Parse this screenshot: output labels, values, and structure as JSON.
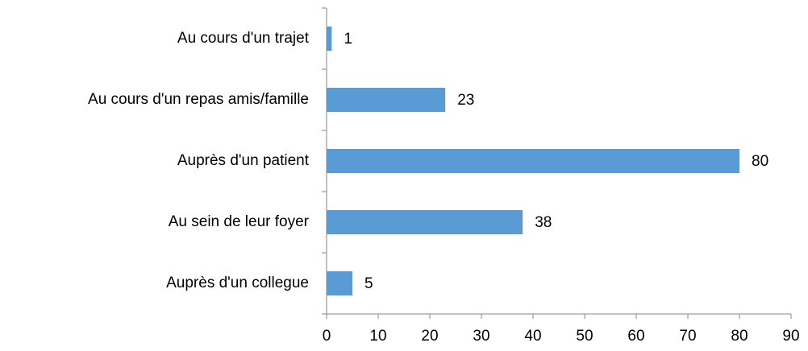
{
  "chart_data": {
    "type": "bar",
    "orientation": "horizontal",
    "categories": [
      "Au cours d'un trajet",
      "Au cours d'un repas amis/famille",
      "Auprès d'un patient",
      "Au sein de leur foyer",
      "Auprès d'un collegue"
    ],
    "values": [
      1,
      23,
      80,
      38,
      5
    ],
    "color": "#5b9bd5",
    "xlim": [
      0,
      90
    ],
    "xticks": [
      0,
      10,
      20,
      30,
      40,
      50,
      60,
      70,
      80,
      90
    ],
    "grid": false
  }
}
